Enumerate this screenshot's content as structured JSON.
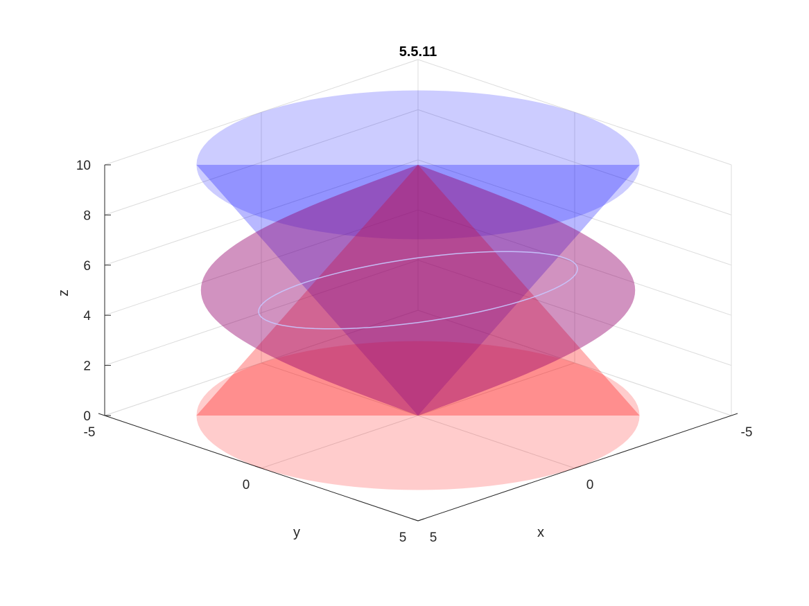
{
  "chart_data": {
    "type": "surface3d",
    "title": "5.5.11",
    "xlabel": "x",
    "ylabel": "y",
    "zlabel": "z",
    "xlim": [
      -5,
      5
    ],
    "ylim": [
      -5,
      5
    ],
    "zlim": [
      0,
      10
    ],
    "x_ticks": [
      -5,
      0,
      5
    ],
    "y_ticks": [
      -5,
      0,
      5
    ],
    "z_ticks": [
      0,
      2,
      4,
      6,
      8,
      10
    ],
    "x_tick_labels": [
      "-5",
      "0",
      "5"
    ],
    "y_tick_labels": [
      "-5",
      "0",
      "5"
    ],
    "z_tick_labels": [
      "0",
      "2",
      "4",
      "6",
      "8",
      "10"
    ],
    "grid": true,
    "view": {
      "azimuth": 135,
      "elevation": 30
    },
    "surfaces": [
      {
        "equation": "z = sqrt(x^2 + y^2)",
        "z_range": [
          0,
          5
        ],
        "color": "#0000ff",
        "opacity": 0.2
      },
      {
        "equation": "z = 10 - sqrt(x^2 + y^2)",
        "z_range": [
          5,
          10
        ],
        "color": "#ff0000",
        "opacity": 0.2
      },
      {
        "equation": "x^2 + y^2 = 5 - z ... (outer lower cone)",
        "z_range": [
          0,
          5
        ],
        "color": "#ff0000",
        "opacity": 0.2
      },
      {
        "equation": "upper cone shell",
        "z_range": [
          5,
          10
        ],
        "color": "#0000ff",
        "opacity": 0.2
      }
    ],
    "curve": {
      "description": "intersection curve",
      "color": "#c8c8ff"
    }
  }
}
